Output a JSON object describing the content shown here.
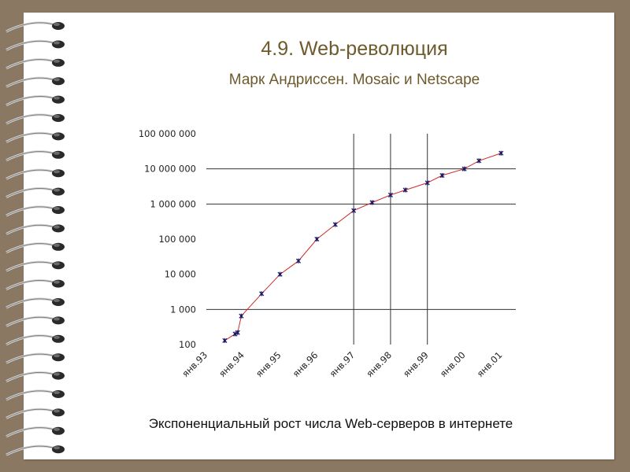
{
  "slide": {
    "title": "4.9. Web-революция",
    "subtitle": "Марк Андриссен. Mosaic и Netscape",
    "caption": "Экспоненциальный рост числа Web-серверов в интернете"
  },
  "colors": {
    "background": "#8a7862",
    "title": "#6e5a2c",
    "line": "#cc2a2a",
    "marker": "#1a1a66"
  },
  "chart_data": {
    "type": "line",
    "title": "",
    "xlabel": "",
    "ylabel": "",
    "yscale": "log",
    "ylim": [
      100,
      100000000
    ],
    "y_ticks": [
      {
        "value": 100,
        "label": "100"
      },
      {
        "value": 1000,
        "label": "1 000"
      },
      {
        "value": 10000,
        "label": "10 000"
      },
      {
        "value": 100000,
        "label": "100 000"
      },
      {
        "value": 1000000,
        "label": "1 000 000"
      },
      {
        "value": 10000000,
        "label": "10 000 000"
      },
      {
        "value": 100000000,
        "label": "100 000 000"
      }
    ],
    "x_ticks": [
      {
        "value": 1993.0,
        "label": "янв.93"
      },
      {
        "value": 1994.0,
        "label": "янв.94"
      },
      {
        "value": 1995.0,
        "label": "янв.95"
      },
      {
        "value": 1996.0,
        "label": "янв.96"
      },
      {
        "value": 1997.0,
        "label": "янв.97"
      },
      {
        "value": 1998.0,
        "label": "янв.98"
      },
      {
        "value": 1999.0,
        "label": "янв.99"
      },
      {
        "value": 2000.0,
        "label": "янв.00"
      },
      {
        "value": 2001.0,
        "label": "янв.01"
      }
    ],
    "xlim": [
      1993.0,
      2001.4
    ],
    "vertical_gridlines": [
      1997.0,
      1998.0,
      1999.0
    ],
    "horizontal_gridlines": [
      1000,
      1000000,
      10000000
    ],
    "legend": "none",
    "series": [
      {
        "points": [
          {
            "x": 1993.5,
            "y": 130
          },
          {
            "x": 1993.78,
            "y": 200
          },
          {
            "x": 1993.85,
            "y": 220
          },
          {
            "x": 1993.95,
            "y": 650
          },
          {
            "x": 1994.5,
            "y": 2800
          },
          {
            "x": 1995.0,
            "y": 10000
          },
          {
            "x": 1995.5,
            "y": 24000
          },
          {
            "x": 1996.0,
            "y": 100000
          },
          {
            "x": 1996.5,
            "y": 260000
          },
          {
            "x": 1997.0,
            "y": 650000
          },
          {
            "x": 1997.5,
            "y": 1100000
          },
          {
            "x": 1998.0,
            "y": 1800000
          },
          {
            "x": 1998.4,
            "y": 2500000
          },
          {
            "x": 1999.0,
            "y": 4000000
          },
          {
            "x": 1999.4,
            "y": 6500000
          },
          {
            "x": 2000.0,
            "y": 10000000
          },
          {
            "x": 2000.4,
            "y": 17000000
          },
          {
            "x": 2001.0,
            "y": 28000000
          }
        ]
      }
    ]
  }
}
